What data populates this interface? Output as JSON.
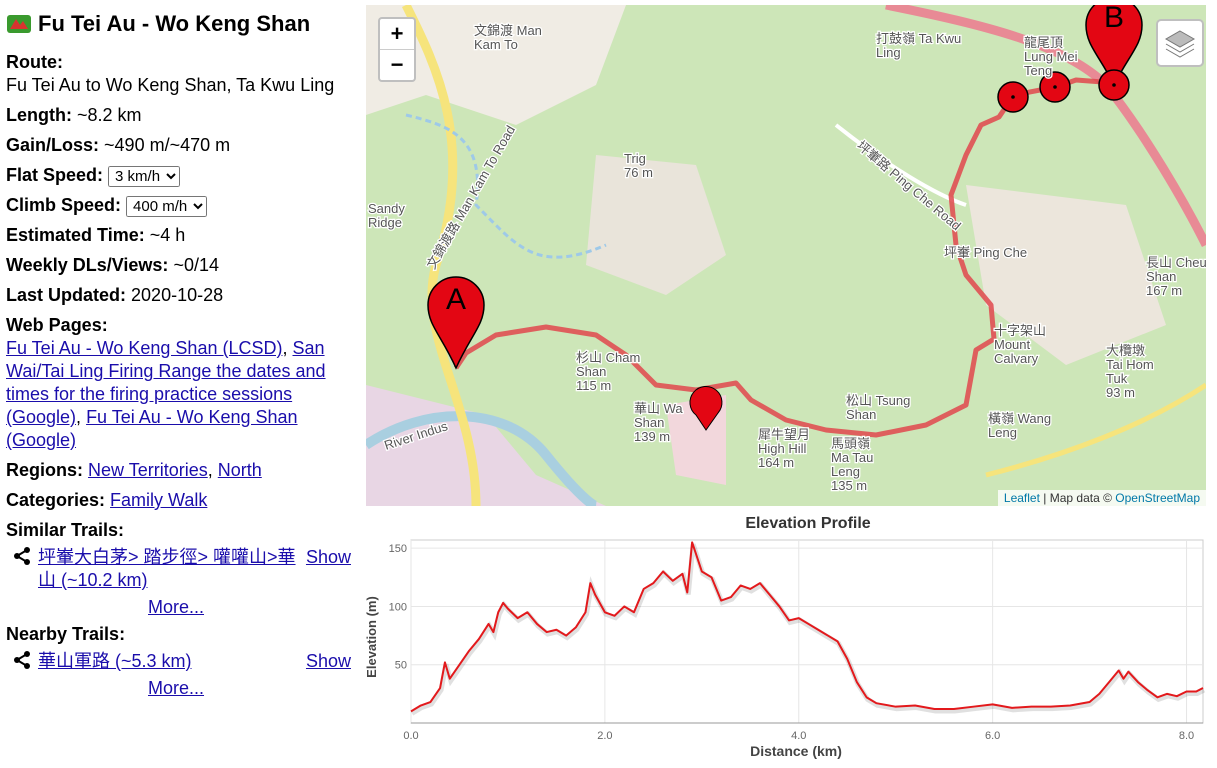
{
  "sidebar": {
    "title": "Fu Tei Au - Wo Keng Shan",
    "route": {
      "label": "Route:",
      "value": "Fu Tei Au to Wo Keng Shan, Ta Kwu Ling"
    },
    "length": {
      "label": "Length:",
      "value": "~8.2 km"
    },
    "gain_loss": {
      "label": "Gain/Loss:",
      "value": "~490 m/~470 m"
    },
    "flat_speed": {
      "label": "Flat Speed:",
      "value": "3 km/h"
    },
    "climb_speed": {
      "label": "Climb Speed:",
      "value": "400 m/h"
    },
    "estimated_time": {
      "label": "Estimated Time:",
      "value": "~4 h"
    },
    "weekly": {
      "label": "Weekly DLs/Views:",
      "value": "~0/14"
    },
    "last_updated": {
      "label": "Last Updated:",
      "value": "2020-10-28"
    },
    "web_pages": {
      "label": "Web Pages:",
      "links": [
        "Fu Tei Au - Wo Keng Shan (LCSD)",
        "San Wai/Tai Ling Firing Range the dates and times for the firing practice sessions (Google)",
        "Fu Tei Au - Wo Keng Shan (Google)"
      ]
    },
    "regions": {
      "label": "Regions:",
      "links": [
        "New Territories",
        "North"
      ]
    },
    "categories": {
      "label": "Categories:",
      "links": [
        "Family Walk"
      ]
    },
    "separator": ",",
    "similar": {
      "label": "Similar Trails:",
      "items": [
        {
          "name": "坪輋大白茅> 踏步徑> 嚾嚾山>華山 (~10.2 km)",
          "action": "Show"
        }
      ],
      "more": "More..."
    },
    "nearby": {
      "label": "Nearby Trails:",
      "items": [
        {
          "name": "華山軍路 (~5.3 km)",
          "action": "Show"
        }
      ],
      "more": "More..."
    }
  },
  "map": {
    "zoom_in": "+",
    "zoom_out": "−",
    "marker_start": "A",
    "marker_end": "B",
    "attribution": {
      "leaflet": "Leaflet",
      "text": "| Map data ©",
      "osm": "OpenStreetMap"
    },
    "labels": [
      {
        "lines": [
          "文錦渡 Man",
          "Kam To"
        ]
      },
      {
        "lines": [
          "打鼓嶺 Ta Kwu",
          "Ling"
        ]
      },
      {
        "lines": [
          "Trig",
          "76 m"
        ]
      },
      {
        "lines": [
          "Sandy",
          "Ridge"
        ]
      },
      {
        "lines": [
          "坪輋 Ping Che"
        ]
      },
      {
        "lines": [
          "長山 Cheung",
          "Shan",
          "167 m"
        ]
      },
      {
        "lines": [
          "杉山 Cham",
          "Shan",
          "115 m"
        ]
      },
      {
        "lines": [
          "華山 Wa",
          "Shan",
          "139 m"
        ]
      },
      {
        "lines": [
          "犀牛望月",
          "High Hill",
          "164 m"
        ]
      },
      {
        "lines": [
          "馬頭嶺",
          "Ma Tau",
          "Leng",
          "135 m"
        ]
      },
      {
        "lines": [
          "松山 Tsung",
          "Shan"
        ]
      },
      {
        "lines": [
          "十字架山",
          "Mount",
          "Calvary"
        ]
      },
      {
        "lines": [
          "大欖墩",
          "Tai Hom",
          "Tuk",
          "93 m"
        ]
      },
      {
        "lines": [
          "橫嶺 Wang",
          "Leng"
        ]
      },
      {
        "lines": [
          "龍尾頂",
          "Lung Mei",
          "Teng"
        ]
      },
      {
        "lines": [
          "River Indus"
        ]
      },
      {
        "lines": [
          "文錦渡路 Man Kam To Road"
        ]
      },
      {
        "lines": [
          "坪輋路 Ping Che Road"
        ]
      }
    ]
  },
  "chart_data": {
    "type": "line",
    "title": "Elevation Profile",
    "x_label": "Distance (km)",
    "y_label": "Elevation (m)",
    "x": [
      0.0,
      0.1,
      0.2,
      0.3,
      0.35,
      0.4,
      0.5,
      0.6,
      0.7,
      0.8,
      0.85,
      0.9,
      0.95,
      1.0,
      1.1,
      1.2,
      1.3,
      1.4,
      1.5,
      1.6,
      1.7,
      1.8,
      1.85,
      1.9,
      2.0,
      2.1,
      2.2,
      2.3,
      2.4,
      2.5,
      2.6,
      2.7,
      2.8,
      2.85,
      2.9,
      3.0,
      3.1,
      3.2,
      3.3,
      3.4,
      3.5,
      3.6,
      3.7,
      3.8,
      3.9,
      4.0,
      4.1,
      4.2,
      4.3,
      4.4,
      4.5,
      4.6,
      4.7,
      4.8,
      5.0,
      5.2,
      5.4,
      5.6,
      5.8,
      6.0,
      6.2,
      6.4,
      6.6,
      6.8,
      7.0,
      7.1,
      7.2,
      7.3,
      7.35,
      7.4,
      7.5,
      7.6,
      7.7,
      7.8,
      7.9,
      8.0,
      8.1,
      8.17
    ],
    "series": [
      {
        "name": "Elevation",
        "color": "#e3191c",
        "values": [
          10,
          15,
          18,
          30,
          52,
          38,
          50,
          62,
          72,
          85,
          78,
          95,
          103,
          98,
          90,
          95,
          85,
          78,
          80,
          75,
          82,
          95,
          120,
          110,
          95,
          92,
          100,
          95,
          115,
          120,
          130,
          122,
          128,
          112,
          155,
          130,
          125,
          105,
          108,
          118,
          115,
          120,
          110,
          100,
          88,
          90,
          85,
          80,
          75,
          70,
          55,
          35,
          22,
          17,
          14,
          15,
          12,
          12,
          14,
          16,
          13,
          14,
          14,
          15,
          18,
          25,
          35,
          45,
          38,
          44,
          35,
          28,
          22,
          25,
          23,
          27,
          27,
          30
        ]
      }
    ],
    "xlim": [
      0,
      8.17
    ],
    "ylim": [
      0,
      157
    ],
    "xticks": [
      {
        "value": 0,
        "label": "0.0"
      },
      {
        "value": 2,
        "label": "2.0"
      },
      {
        "value": 4,
        "label": "4.0"
      },
      {
        "value": 6,
        "label": "6.0"
      },
      {
        "value": 8,
        "label": "8.0"
      }
    ],
    "yticks": [
      50,
      100,
      150
    ],
    "grid": true
  }
}
